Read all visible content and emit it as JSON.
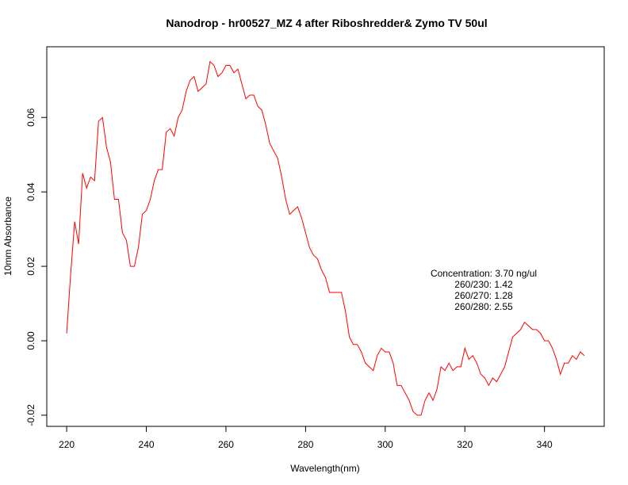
{
  "chart_data": {
    "type": "line",
    "title": "Nanodrop - hr00527_MZ 4 after Riboshredder& Zymo  TV 50ul",
    "xlabel": "Wavelength(nm)",
    "ylabel": "10mm Absorbance",
    "xlim": [
      215,
      355
    ],
    "ylim": [
      -0.023,
      0.079
    ],
    "xticks": [
      220,
      240,
      260,
      280,
      300,
      320,
      340
    ],
    "xtick_labels": [
      "220",
      "240",
      "260",
      "280",
      "300",
      "320",
      "340"
    ],
    "yticks": [
      -0.02,
      0.0,
      0.02,
      0.04,
      0.06
    ],
    "ytick_labels": [
      "-0.02",
      "0.00",
      "0.02",
      "0.04",
      "0.06"
    ],
    "grid": false,
    "legend": "none",
    "line_color": "#ff0000",
    "annotations": [
      "Concentration: 3.70 ng/ul",
      "260/230: 1.42",
      "260/270: 1.28",
      "260/280: 2.55"
    ],
    "series": [
      {
        "x": [
          220,
          221,
          222,
          223,
          224,
          225,
          226,
          227,
          228,
          229,
          230,
          231,
          232,
          233,
          234,
          235,
          236,
          237,
          238,
          239,
          240,
          241,
          242,
          243,
          244,
          245,
          246,
          247,
          248,
          249,
          250,
          251,
          252,
          253,
          254,
          255,
          256,
          257,
          258,
          259,
          260,
          261,
          262,
          263,
          264,
          265,
          266,
          267,
          268,
          269,
          270,
          271,
          272,
          273,
          274,
          275,
          276,
          277,
          278,
          279,
          280,
          281,
          282,
          283,
          284,
          285,
          286,
          287,
          288,
          289,
          290,
          291,
          292,
          293,
          294,
          295,
          296,
          297,
          298,
          299,
          300,
          301,
          302,
          303,
          304,
          305,
          306,
          307,
          308,
          309,
          310,
          311,
          312,
          313,
          314,
          315,
          316,
          317,
          318,
          319,
          320,
          321,
          322,
          323,
          324,
          325,
          326,
          327,
          328,
          329,
          330,
          331,
          332,
          333,
          334,
          335,
          336,
          337,
          338,
          339,
          340,
          341,
          342,
          343,
          344,
          345,
          346,
          347,
          348,
          349,
          350
        ],
        "y": [
          0.002,
          0.018,
          0.032,
          0.026,
          0.045,
          0.041,
          0.044,
          0.043,
          0.059,
          0.06,
          0.052,
          0.048,
          0.038,
          0.038,
          0.029,
          0.027,
          0.02,
          0.02,
          0.025,
          0.034,
          0.035,
          0.038,
          0.043,
          0.046,
          0.046,
          0.056,
          0.057,
          0.055,
          0.06,
          0.062,
          0.067,
          0.07,
          0.071,
          0.067,
          0.068,
          0.069,
          0.075,
          0.074,
          0.071,
          0.072,
          0.074,
          0.074,
          0.072,
          0.073,
          0.069,
          0.065,
          0.066,
          0.066,
          0.063,
          0.062,
          0.058,
          0.053,
          0.051,
          0.049,
          0.044,
          0.038,
          0.034,
          0.035,
          0.036,
          0.033,
          0.029,
          0.025,
          0.023,
          0.022,
          0.019,
          0.017,
          0.013,
          0.013,
          0.013,
          0.013,
          0.008,
          0.001,
          -0.001,
          -0.001,
          -0.003,
          -0.006,
          -0.007,
          -0.008,
          -0.004,
          -0.002,
          -0.003,
          -0.003,
          -0.006,
          -0.012,
          -0.012,
          -0.014,
          -0.016,
          -0.019,
          -0.02,
          -0.02,
          -0.016,
          -0.014,
          -0.016,
          -0.013,
          -0.007,
          -0.008,
          -0.006,
          -0.008,
          -0.007,
          -0.007,
          -0.002,
          -0.005,
          -0.004,
          -0.006,
          -0.009,
          -0.01,
          -0.012,
          -0.01,
          -0.011,
          -0.009,
          -0.007,
          -0.003,
          0.001,
          0.002,
          0.003,
          0.005,
          0.004,
          0.003,
          0.003,
          0.002,
          0.0,
          0.0,
          -0.002,
          -0.005,
          -0.009,
          -0.006,
          -0.006,
          -0.004,
          -0.005,
          -0.003,
          -0.004
        ]
      }
    ]
  }
}
